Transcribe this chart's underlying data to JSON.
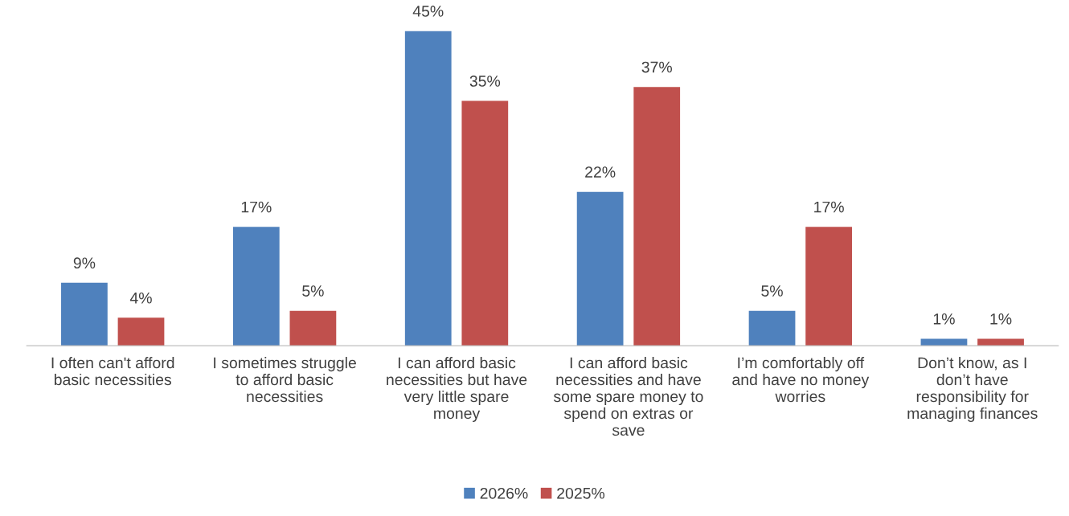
{
  "chart_data": {
    "type": "bar",
    "categories": [
      "I often can't afford basic necessities",
      "I sometimes struggle to afford basic necessities",
      "I can afford basic necessities but have very little spare money",
      "I can afford basic necessities and have some spare money to spend on extras or save",
      "I’m comfortably off and have no money worries",
      "Don’t know, as I don’t have responsibility for managing finances"
    ],
    "series": [
      {
        "name": "2026%",
        "color": "#4f81bd",
        "values": [
          9,
          17,
          45,
          22,
          5,
          1
        ],
        "value_labels": [
          "9%",
          "17%",
          "45%",
          "22%",
          "5%",
          "1%"
        ]
      },
      {
        "name": "2025%",
        "color": "#c0504d",
        "values": [
          4,
          5,
          35,
          37,
          17,
          1
        ],
        "value_labels": [
          "4%",
          "5%",
          "35%",
          "37%",
          "17%",
          "1%"
        ]
      }
    ],
    "legend": "bottom"
  }
}
